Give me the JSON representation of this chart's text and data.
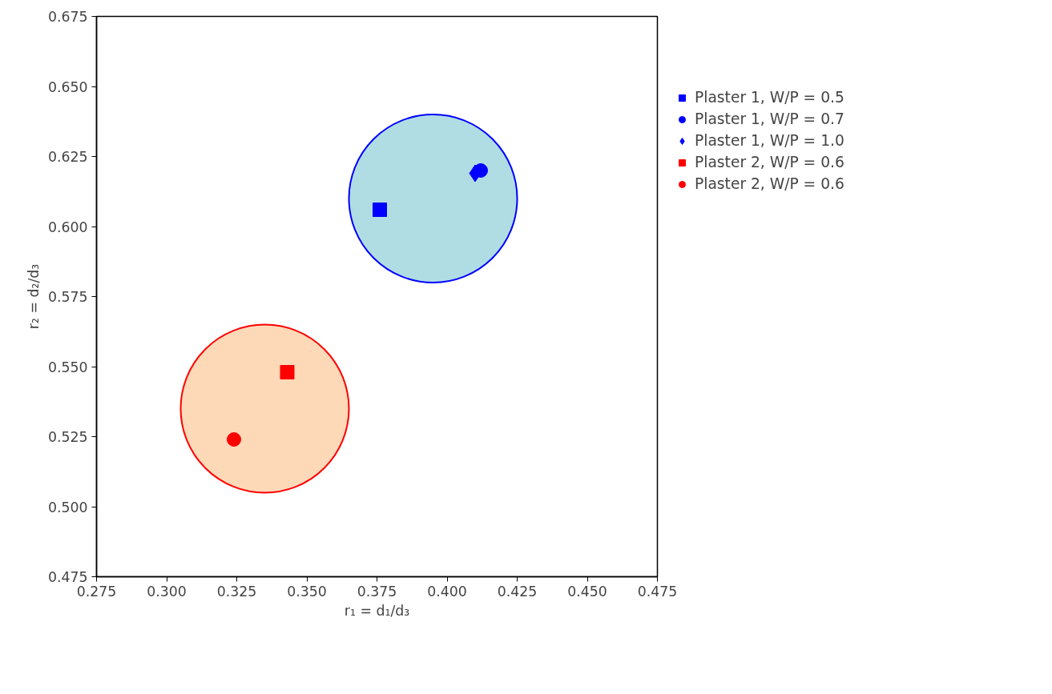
{
  "chart_data": {
    "type": "scatter",
    "xlabel": "r₁ = d₁/d₃",
    "ylabel": "r₂ = d₂/d₃",
    "xlim": [
      0.275,
      0.475
    ],
    "ylim": [
      0.475,
      0.675
    ],
    "xticks": [
      {
        "value": 0.275,
        "label": "0.275"
      },
      {
        "value": 0.3,
        "label": "0.300"
      },
      {
        "value": 0.325,
        "label": "0.325"
      },
      {
        "value": 0.35,
        "label": "0.350"
      },
      {
        "value": 0.375,
        "label": "0.375"
      },
      {
        "value": 0.4,
        "label": "0.400"
      },
      {
        "value": 0.425,
        "label": "0.425"
      },
      {
        "value": 0.45,
        "label": "0.450"
      },
      {
        "value": 0.475,
        "label": "0.475"
      }
    ],
    "yticks": [
      {
        "value": 0.475,
        "label": "0.475"
      },
      {
        "value": 0.5,
        "label": "0.500"
      },
      {
        "value": 0.525,
        "label": "0.525"
      },
      {
        "value": 0.55,
        "label": "0.550"
      },
      {
        "value": 0.575,
        "label": "0.575"
      },
      {
        "value": 0.6,
        "label": "0.600"
      },
      {
        "value": 0.625,
        "label": "0.625"
      },
      {
        "value": 0.65,
        "label": "0.650"
      },
      {
        "value": 0.675,
        "label": "0.675"
      }
    ],
    "grid": false,
    "legend": "right",
    "series": [
      {
        "type": "bubble",
        "x": [
          0.395
        ],
        "values": [
          0.61
        ],
        "sizes": [
          1
        ],
        "color": "#b0dde4",
        "colors": [
          "#0000ff"
        ]
      },
      {
        "type": "bubble",
        "x": [
          0.335
        ],
        "values": [
          0.535
        ],
        "sizes": [
          1
        ],
        "color": "#fdd9b8",
        "colors": [
          "#ff0000"
        ]
      },
      {
        "name": "Plaster 1, W/P = 0.5",
        "marker": "square",
        "color": "#0000ff",
        "x": [
          0.376
        ],
        "values": [
          0.606
        ]
      },
      {
        "name": "Plaster 1, W/P = 0.7",
        "marker": "circle",
        "color": "#0000ff",
        "x": [
          0.412
        ],
        "values": [
          0.62
        ]
      },
      {
        "name": "Plaster 1, W/P = 1.0",
        "marker": "diamond",
        "color": "#0000ff",
        "x": [
          0.41
        ],
        "values": [
          0.619
        ]
      },
      {
        "name": "Plaster 2, W/P = 0.6",
        "marker": "square",
        "color": "#ff0000",
        "x": [
          0.343
        ],
        "values": [
          0.548
        ]
      },
      {
        "name": "Plaster 2, W/P = 0.6",
        "marker": "circle",
        "color": "#ff0000",
        "x": [
          0.324
        ],
        "values": [
          0.524
        ]
      }
    ]
  }
}
